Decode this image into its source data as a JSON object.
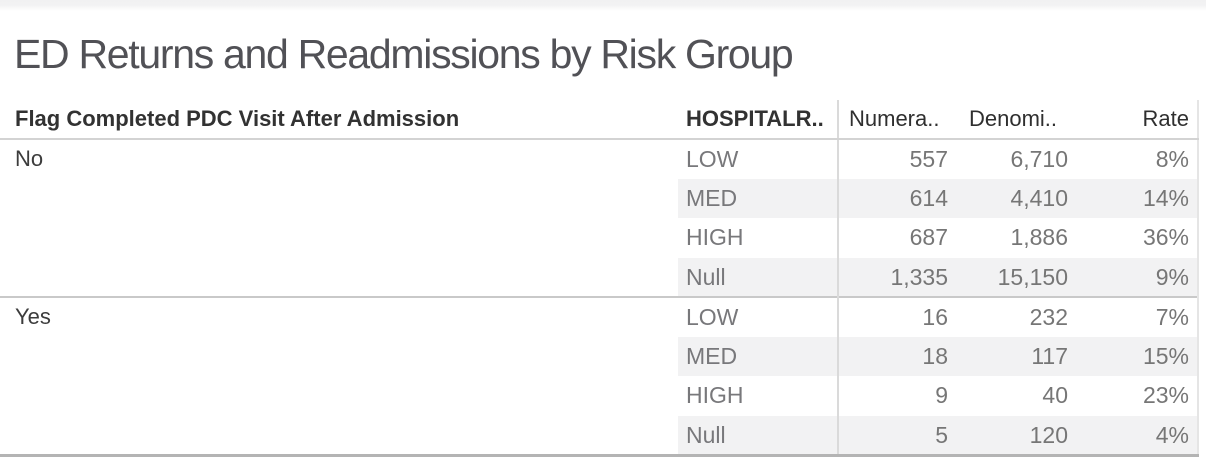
{
  "chart_data": {
    "type": "table",
    "title": "ED Returns and Readmissions by Risk Group",
    "columns": [
      "Flag Completed PDC Visit After Admission",
      "HOSPITALR..",
      "Numera..",
      "Denomi..",
      "Rate"
    ],
    "sections": [
      {
        "flag": "No",
        "rows": [
          {
            "risk": "LOW",
            "numerator": "557",
            "denominator": "6,710",
            "rate": "8%"
          },
          {
            "risk": "MED",
            "numerator": "614",
            "denominator": "4,410",
            "rate": "14%"
          },
          {
            "risk": "HIGH",
            "numerator": "687",
            "denominator": "1,886",
            "rate": "36%"
          },
          {
            "risk": "Null",
            "numerator": "1,335",
            "denominator": "15,150",
            "rate": "9%"
          }
        ]
      },
      {
        "flag": "Yes",
        "rows": [
          {
            "risk": "LOW",
            "numerator": "16",
            "denominator": "232",
            "rate": "7%"
          },
          {
            "risk": "MED",
            "numerator": "18",
            "denominator": "117",
            "rate": "15%"
          },
          {
            "risk": "HIGH",
            "numerator": "9",
            "denominator": "40",
            "rate": "23%"
          },
          {
            "risk": "Null",
            "numerator": "5",
            "denominator": "120",
            "rate": "4%"
          }
        ]
      }
    ],
    "layout_hints": {
      "row_banding": "on",
      "banded_rows": [
        "MED",
        "Null"
      ],
      "grid": "partial: header underline, section divider, column divider before Numera.., right edge, dark bottom border"
    }
  },
  "colors": {
    "title_text": "#515156",
    "header_text": "#323232",
    "body_text": "#767676",
    "row_header_text": "#3c3c3c",
    "band_background": "#f2f2f3",
    "top_strip": "#f1f1f2",
    "header_divider": "#d3d3d3",
    "section_divider": "#c9c9c9",
    "column_divider": "#dadada",
    "right_edge_line": "#e5e5e5",
    "bottom_border": "#b4b4b4"
  }
}
